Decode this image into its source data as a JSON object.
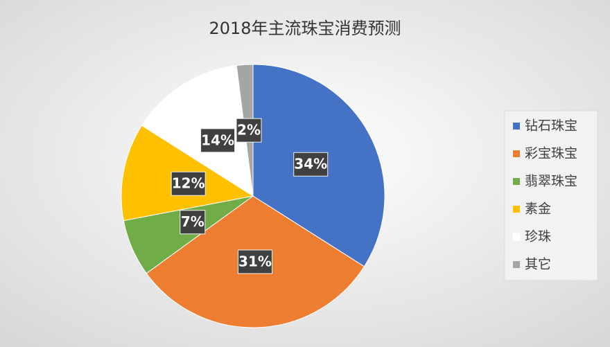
{
  "chart_data": {
    "type": "pie",
    "title": "2018年主流珠宝消费预测",
    "categories": [
      "钻石珠宝",
      "彩宝珠宝",
      "翡翠珠宝",
      "素金",
      "珍珠",
      "其它"
    ],
    "values": [
      34,
      31,
      7,
      12,
      14,
      2
    ],
    "value_labels": [
      "34%",
      "31%",
      "7%",
      "12%",
      "14%",
      "2%"
    ],
    "colors": [
      "#4472c4",
      "#ed7d31",
      "#70ad47",
      "#ffc000",
      "#ffffff",
      "#a5a5a5"
    ],
    "legend": "right"
  }
}
